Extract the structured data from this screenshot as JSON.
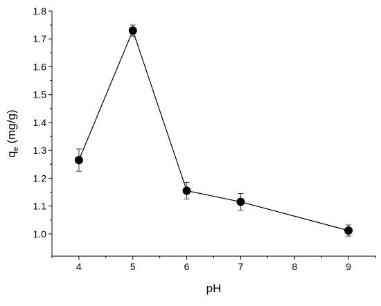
{
  "chart_data": {
    "type": "scatter",
    "title": "",
    "xlabel": "pH",
    "ylabel": {
      "main": "q",
      "subscript": "e",
      "unit": " (mg/g)"
    },
    "x_ticks": [
      {
        "value": 4,
        "label": "4"
      },
      {
        "value": 5,
        "label": "5"
      },
      {
        "value": 6,
        "label": "6"
      },
      {
        "value": 7,
        "label": "7"
      },
      {
        "value": 8,
        "label": "8"
      },
      {
        "value": 9,
        "label": "9"
      }
    ],
    "y_ticks": [
      {
        "value": 1.0,
        "label": "1.0"
      },
      {
        "value": 1.1,
        "label": "1.1"
      },
      {
        "value": 1.2,
        "label": "1.2"
      },
      {
        "value": 1.3,
        "label": "1.3"
      },
      {
        "value": 1.4,
        "label": "1.4"
      },
      {
        "value": 1.5,
        "label": "1.5"
      },
      {
        "value": 1.6,
        "label": "1.6"
      },
      {
        "value": 1.7,
        "label": "1.7"
      },
      {
        "value": 1.8,
        "label": "1.8"
      }
    ],
    "xlim": [
      3.5,
      9.5
    ],
    "ylim": [
      0.92,
      1.8
    ],
    "grid": false,
    "legend": "none",
    "series": [
      {
        "x": [
          4,
          5,
          6,
          7,
          9
        ],
        "y": [
          1.265,
          1.73,
          1.155,
          1.115,
          1.012
        ],
        "error": [
          0.04,
          0.02,
          0.03,
          0.03,
          0.02
        ],
        "marker": "filled-circle",
        "line": true,
        "color": "#000000"
      }
    ]
  }
}
